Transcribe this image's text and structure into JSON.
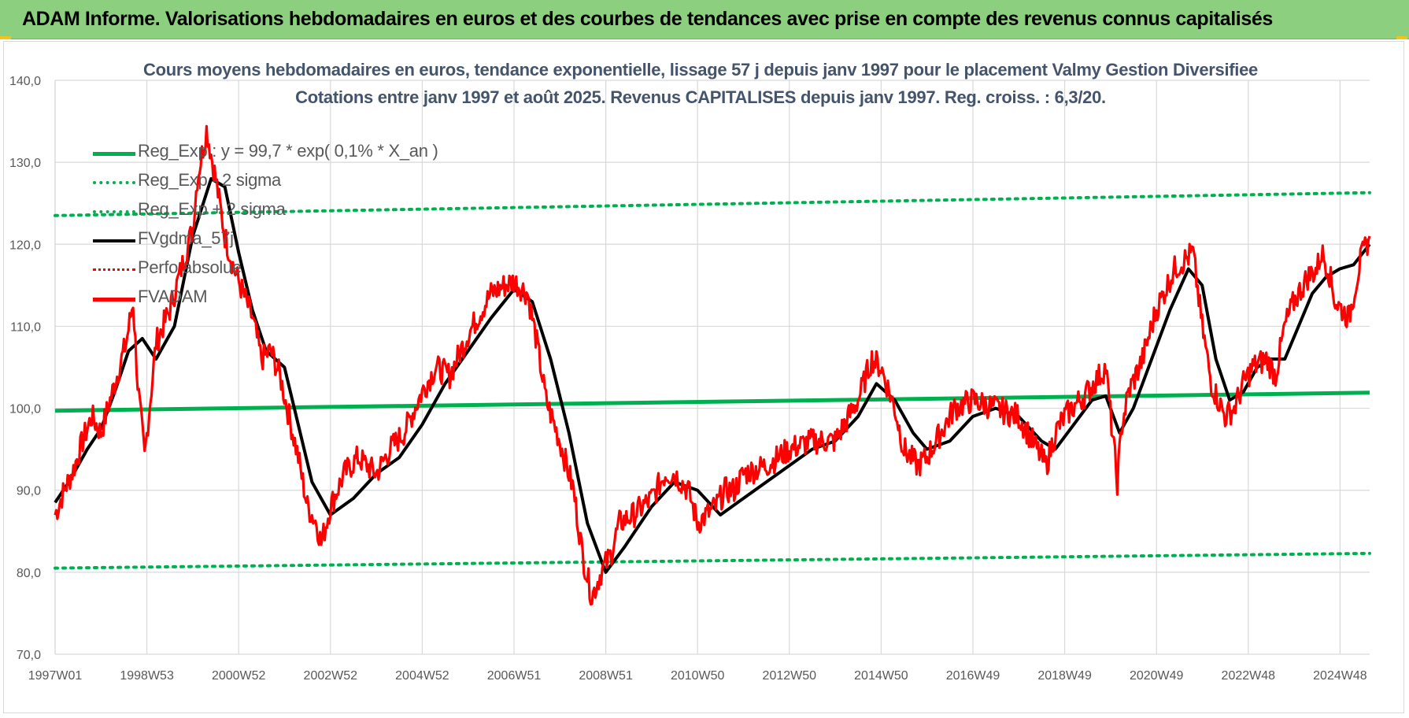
{
  "banner": {
    "title": "ADAM Informe. Valorisations hebdomadaires en euros et des courbes de tendances avec prise en compte des revenus connus capitalisés"
  },
  "colors": {
    "banner_bg": "#8ccf7e",
    "green": "#00b050",
    "black": "#000000",
    "red": "#ff0000",
    "title_text": "#44546a",
    "gridline": "#d9d9d9",
    "axis_text": "#595959"
  },
  "chart_data": {
    "type": "line",
    "title_line1": "Cours moyens hebdomadaires en euros, tendance exponentielle, lissage 57 j depuis janv 1997 pour le placement Valmy Gestion Diversifiee",
    "title_line2": "Cotations entre janv 1997 et août 2025.  Revenus CAPITALISES depuis janv 1997. Reg. croiss. : 6,3/20.",
    "ylim": [
      70,
      140
    ],
    "y_ticks": [
      "140,0",
      "130,0",
      "120,0",
      "110,0",
      "100,0",
      "90,0",
      "80,0",
      "70,0"
    ],
    "x_ticks": [
      "1997W01",
      "1998W53",
      "2000W52",
      "2002W52",
      "2004W52",
      "2006W51",
      "2008W51",
      "2010W50",
      "2012W50",
      "2014W50",
      "2016W49",
      "2018W49",
      "2020W49",
      "2022W48",
      "2024W48"
    ],
    "x_range_years": [
      1997.0,
      2025.65
    ],
    "grid": true,
    "legend": [
      {
        "label": "Reg_Exp : y = 99,7 * exp( 0,1% *  X_an )",
        "color": "#00b050",
        "style": "solid"
      },
      {
        "label": "Reg_Exp - 2 sigma",
        "color": "#00b050",
        "style": "dotted"
      },
      {
        "label": "Reg_Exp + 2 sigma",
        "color": "#00b050",
        "style": "dotted"
      },
      {
        "label": "FVgdma_57j",
        "color": "#000000",
        "style": "solid"
      },
      {
        "label": "Perfo absolue",
        "color": "#ff0000",
        "style": "dotted"
      },
      {
        "label": "FVADAM",
        "color": "#ff0000",
        "style": "solid"
      }
    ],
    "series": [
      {
        "name": "Reg_Exp : y = 99,7 * exp( 0,1% *  X_an )",
        "x": [
          1997.0,
          2025.65
        ],
        "y": [
          99.7,
          101.9
        ]
      },
      {
        "name": "Reg_Exp - 2 sigma",
        "x": [
          1997.0,
          2025.65
        ],
        "y": [
          80.5,
          82.3
        ]
      },
      {
        "name": "Reg_Exp + 2 sigma",
        "x": [
          1997.0,
          2025.65
        ],
        "y": [
          123.5,
          126.3
        ]
      },
      {
        "name": "FVADAM",
        "x": [
          1997.0,
          1997.2,
          1997.4,
          1997.6,
          1997.8,
          1998.0,
          1998.2,
          1998.4,
          1998.55,
          1998.7,
          1998.8,
          1998.95,
          1999.2,
          1999.5,
          1999.8,
          2000.0,
          2000.1,
          2000.3,
          2000.5,
          2000.7,
          2000.9,
          2001.1,
          2001.3,
          2001.5,
          2001.7,
          2001.9,
          2002.1,
          2002.3,
          2002.5,
          2002.7,
          2002.8,
          2003.0,
          2003.3,
          2003.6,
          2004.0,
          2004.3,
          2004.6,
          2005.0,
          2005.3,
          2005.6,
          2006.0,
          2006.3,
          2006.5,
          2006.8,
          2007.0,
          2007.3,
          2007.5,
          2007.7,
          2008.0,
          2008.3,
          2008.5,
          2008.7,
          2008.9,
          2009.1,
          2009.3,
          2009.6,
          2010.0,
          2010.3,
          2010.5,
          2010.8,
          2011.0,
          2011.4,
          2011.6,
          2011.8,
          2012.0,
          2012.5,
          2013.0,
          2013.5,
          2014.0,
          2014.5,
          2014.8,
          2015.0,
          2015.3,
          2015.5,
          2015.8,
          2016.0,
          2016.3,
          2016.6,
          2017.0,
          2017.5,
          2018.0,
          2018.3,
          2018.6,
          2018.8,
          2019.0,
          2019.5,
          2019.9,
          2020.15,
          2020.25,
          2020.4,
          2020.7,
          2021.0,
          2021.4,
          2021.8,
          2022.0,
          2022.2,
          2022.5,
          2022.7,
          2022.9,
          2023.1,
          2023.4,
          2023.6,
          2023.8,
          2024.0,
          2024.3,
          2024.5,
          2024.6,
          2024.75,
          2024.9,
          2025.2,
          2025.45,
          2025.65
        ],
        "y": [
          87.0,
          90.0,
          92.5,
          96.0,
          99.0,
          97.0,
          101.0,
          105.0,
          108.0,
          113.0,
          103.0,
          94.0,
          108.0,
          112.0,
          118.0,
          122.0,
          128.0,
          134.0,
          128.0,
          121.0,
          117.0,
          114.0,
          111.0,
          106.0,
          107.0,
          104.0,
          99.0,
          94.0,
          88.0,
          86.0,
          83.5,
          88.0,
          92.0,
          94.0,
          92.0,
          95.0,
          97.0,
          102.0,
          105.0,
          104.0,
          109.0,
          112.0,
          114.0,
          115.0,
          115.5,
          114.0,
          108.0,
          101.0,
          96.0,
          90.0,
          82.0,
          77.0,
          80.0,
          82.0,
          86.0,
          87.0,
          89.0,
          92.0,
          92.0,
          90.0,
          86.0,
          88.0,
          90.0,
          90.0,
          92.0,
          93.0,
          95.0,
          96.0,
          96.0,
          101.0,
          106.0,
          105.0,
          100.0,
          95.0,
          93.0,
          94.0,
          97.0,
          100.0,
          101.0,
          100.0,
          99.0,
          96.0,
          93.0,
          97.0,
          99.0,
          102.0,
          105.0,
          91.0,
          98.0,
          102.0,
          106.0,
          112.0,
          117.0,
          119.0,
          110.0,
          103.0,
          99.0,
          100.0,
          103.0,
          105.0,
          106.0,
          104.0,
          110.0,
          113.0,
          116.0,
          117.0,
          119.0,
          117.0,
          113.0,
          111.0,
          118.0,
          121.0
        ]
      },
      {
        "name": "FVgdma_57j",
        "x": [
          1997.0,
          1997.3,
          1997.7,
          1998.0,
          1998.3,
          1998.6,
          1998.9,
          1999.2,
          1999.6,
          2000.0,
          2000.4,
          2000.7,
          2001.0,
          2001.3,
          2001.6,
          2002.0,
          2002.3,
          2002.6,
          2003.0,
          2003.5,
          2004.0,
          2004.5,
          2005.0,
          2005.5,
          2006.0,
          2006.5,
          2007.0,
          2007.4,
          2007.8,
          2008.2,
          2008.6,
          2009.0,
          2009.4,
          2010.0,
          2010.5,
          2011.0,
          2011.5,
          2012.0,
          2012.5,
          2013.0,
          2013.5,
          2014.0,
          2014.5,
          2014.9,
          2015.3,
          2015.7,
          2016.0,
          2016.5,
          2017.0,
          2017.5,
          2018.0,
          2018.5,
          2018.8,
          2019.2,
          2019.6,
          2019.9,
          2020.2,
          2020.5,
          2020.9,
          2021.3,
          2021.7,
          2022.0,
          2022.3,
          2022.6,
          2022.9,
          2023.2,
          2023.5,
          2023.8,
          2024.1,
          2024.4,
          2024.7,
          2025.0,
          2025.3,
          2025.65
        ],
        "y": [
          88.5,
          91.0,
          95.0,
          97.5,
          102.0,
          107.0,
          108.5,
          106.0,
          110.0,
          121.0,
          128.0,
          127.0,
          119.0,
          112.0,
          107.0,
          105.0,
          98.0,
          91.0,
          87.0,
          89.0,
          92.0,
          94.0,
          98.0,
          103.0,
          107.0,
          111.0,
          114.5,
          113.0,
          106.0,
          97.0,
          86.0,
          80.0,
          83.0,
          88.0,
          91.0,
          90.0,
          87.0,
          89.0,
          91.0,
          93.0,
          95.0,
          96.0,
          99.0,
          103.0,
          101.0,
          97.0,
          95.0,
          96.0,
          99.0,
          100.0,
          99.0,
          96.0,
          95.0,
          98.0,
          101.0,
          101.5,
          97.0,
          100.0,
          106.0,
          112.0,
          117.0,
          115.0,
          106.0,
          101.0,
          102.0,
          105.0,
          106.0,
          106.0,
          110.0,
          114.0,
          116.0,
          117.0,
          117.5,
          120.0
        ]
      }
    ]
  }
}
